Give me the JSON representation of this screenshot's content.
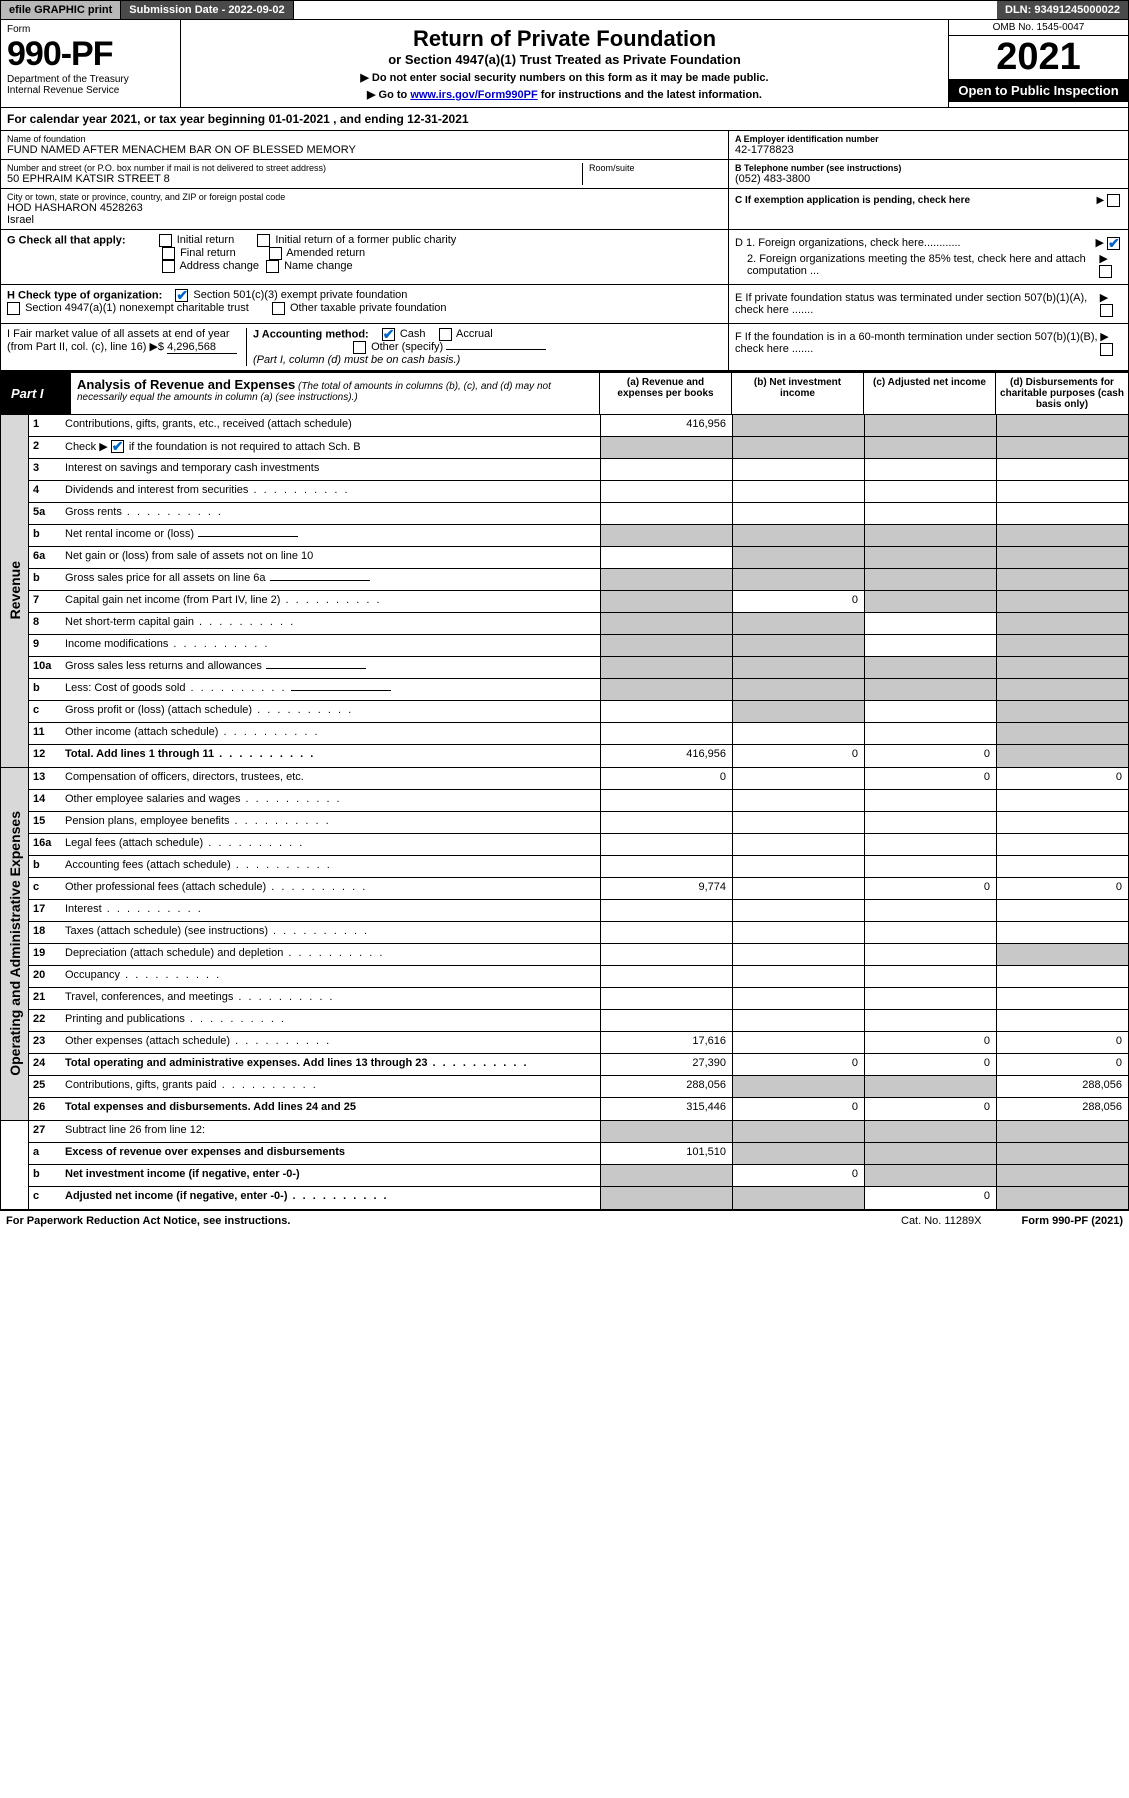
{
  "topbar": {
    "efile": "efile GRAPHIC print",
    "subdate_label": "Submission Date - 2022-09-02",
    "dln": "DLN: 93491245000022"
  },
  "header": {
    "form_word": "Form",
    "form_no": "990-PF",
    "dept": "Department of the Treasury",
    "irs": "Internal Revenue Service",
    "title": "Return of Private Foundation",
    "subtitle": "or Section 4947(a)(1) Trust Treated as Private Foundation",
    "note1": "▶ Do not enter social security numbers on this form as it may be made public.",
    "note2_pre": "▶ Go to ",
    "note2_link": "www.irs.gov/Form990PF",
    "note2_post": " for instructions and the latest information.",
    "omb": "OMB No. 1545-0047",
    "year": "2021",
    "inspect": "Open to Public Inspection"
  },
  "calyear": "For calendar year 2021, or tax year beginning 01-01-2021             , and ending 12-31-2021",
  "info": {
    "name_lbl": "Name of foundation",
    "name": "FUND NAMED AFTER MENACHEM BAR ON OF BLESSED MEMORY",
    "addr_lbl": "Number and street (or P.O. box number if mail is not delivered to street address)",
    "addr": "50 EPHRAIM KATSIR STREET 8",
    "room_lbl": "Room/suite",
    "city_lbl": "City or town, state or province, country, and ZIP or foreign postal code",
    "city": "HOD HASHARON  4528263",
    "country": "Israel",
    "a_lbl": "A Employer identification number",
    "a_val": "42-1778823",
    "b_lbl": "B Telephone number (see instructions)",
    "b_val": "(052) 483-3800",
    "c_lbl": "C If exemption application is pending, check here"
  },
  "g": {
    "label": "G Check all that apply:",
    "opts": [
      "Initial return",
      "Final return",
      "Address change",
      "Initial return of a former public charity",
      "Amended return",
      "Name change"
    ]
  },
  "d": {
    "d1": "D 1. Foreign organizations, check here............",
    "d2": "2. Foreign organizations meeting the 85% test, check here and attach computation ...",
    "e": "E  If private foundation status was terminated under section 507(b)(1)(A), check here .......",
    "f": "F  If the foundation is in a 60-month termination under section 507(b)(1)(B), check here ......."
  },
  "h": {
    "label": "H Check type of organization:",
    "opt1": "Section 501(c)(3) exempt private foundation",
    "opt2": "Section 4947(a)(1) nonexempt charitable trust",
    "opt3": "Other taxable private foundation"
  },
  "i": {
    "label": "I Fair market value of all assets at end of year (from Part II, col. (c), line 16)",
    "arrow": "▶$",
    "val": "4,296,568"
  },
  "j": {
    "label": "J Accounting method:",
    "cash": "Cash",
    "accrual": "Accrual",
    "other": "Other (specify)",
    "note": "(Part I, column (d) must be on cash basis.)"
  },
  "part1": {
    "label": "Part I",
    "title": "Analysis of Revenue and Expenses",
    "sub": "(The total of amounts in columns (b), (c), and (d) may not necessarily equal the amounts in column (a) (see instructions).)",
    "cols": {
      "a": "(a)  Revenue and expenses per books",
      "b": "(b)  Net investment income",
      "c": "(c)  Adjusted net income",
      "d": "(d)  Disbursements for charitable purposes (cash basis only)"
    }
  },
  "sections": {
    "revenue": "Revenue",
    "opex": "Operating and Administrative Expenses"
  },
  "rows": {
    "r1": {
      "n": "1",
      "d": "Contributions, gifts, grants, etc., received (attach schedule)",
      "a": "416,956",
      "shade": [
        "b",
        "c",
        "d"
      ]
    },
    "r2": {
      "n": "2",
      "d_pre": "Check ▶ ",
      "d_post": " if the foundation is not required to attach Sch. B",
      "checked": true,
      "shade": [
        "a",
        "b",
        "c",
        "d"
      ]
    },
    "r3": {
      "n": "3",
      "d": "Interest on savings and temporary cash investments"
    },
    "r4": {
      "n": "4",
      "d": "Dividends and interest from securities",
      "dots": true
    },
    "r5a": {
      "n": "5a",
      "d": "Gross rents",
      "dots": true
    },
    "r5b": {
      "n": "b",
      "d": "Net rental income or (loss)",
      "inline": true,
      "shade": [
        "a",
        "b",
        "c",
        "d"
      ]
    },
    "r6a": {
      "n": "6a",
      "d": "Net gain or (loss) from sale of assets not on line 10",
      "shade": [
        "b",
        "c",
        "d"
      ]
    },
    "r6b": {
      "n": "b",
      "d": "Gross sales price for all assets on line 6a",
      "inline": true,
      "shade": [
        "a",
        "b",
        "c",
        "d"
      ]
    },
    "r7": {
      "n": "7",
      "d": "Capital gain net income (from Part IV, line 2)",
      "dots": true,
      "b": "0",
      "shade": [
        "a",
        "c",
        "d"
      ]
    },
    "r8": {
      "n": "8",
      "d": "Net short-term capital gain",
      "dots": true,
      "shade": [
        "a",
        "b",
        "d"
      ]
    },
    "r9": {
      "n": "9",
      "d": "Income modifications",
      "dots": true,
      "shade": [
        "a",
        "b",
        "d"
      ]
    },
    "r10a": {
      "n": "10a",
      "d": "Gross sales less returns and allowances",
      "inline": true,
      "shade": [
        "a",
        "b",
        "c",
        "d"
      ]
    },
    "r10b": {
      "n": "b",
      "d": "Less: Cost of goods sold",
      "dots": true,
      "inline": true,
      "shade": [
        "a",
        "b",
        "c",
        "d"
      ]
    },
    "r10c": {
      "n": "c",
      "d": "Gross profit or (loss) (attach schedule)",
      "dots": true,
      "shade": [
        "b",
        "d"
      ]
    },
    "r11": {
      "n": "11",
      "d": "Other income (attach schedule)",
      "dots": true,
      "shade": [
        "d"
      ]
    },
    "r12": {
      "n": "12",
      "d": "Total. Add lines 1 through 11",
      "dots": true,
      "bold": true,
      "a": "416,956",
      "b": "0",
      "c": "0",
      "shade": [
        "d"
      ]
    },
    "r13": {
      "n": "13",
      "d": "Compensation of officers, directors, trustees, etc.",
      "a": "0",
      "c": "0",
      "dd": "0"
    },
    "r14": {
      "n": "14",
      "d": "Other employee salaries and wages",
      "dots": true
    },
    "r15": {
      "n": "15",
      "d": "Pension plans, employee benefits",
      "dots": true
    },
    "r16a": {
      "n": "16a",
      "d": "Legal fees (attach schedule)",
      "dots": true
    },
    "r16b": {
      "n": "b",
      "d": "Accounting fees (attach schedule)",
      "dots": true
    },
    "r16c": {
      "n": "c",
      "d": "Other professional fees (attach schedule)",
      "dots": true,
      "a": "9,774",
      "c": "0",
      "dd": "0"
    },
    "r17": {
      "n": "17",
      "d": "Interest",
      "dots": true
    },
    "r18": {
      "n": "18",
      "d": "Taxes (attach schedule) (see instructions)",
      "dots": true
    },
    "r19": {
      "n": "19",
      "d": "Depreciation (attach schedule) and depletion",
      "dots": true,
      "shade": [
        "d"
      ]
    },
    "r20": {
      "n": "20",
      "d": "Occupancy",
      "dots": true
    },
    "r21": {
      "n": "21",
      "d": "Travel, conferences, and meetings",
      "dots": true
    },
    "r22": {
      "n": "22",
      "d": "Printing and publications",
      "dots": true
    },
    "r23": {
      "n": "23",
      "d": "Other expenses (attach schedule)",
      "dots": true,
      "a": "17,616",
      "c": "0",
      "dd": "0"
    },
    "r24": {
      "n": "24",
      "d": "Total operating and administrative expenses. Add lines 13 through 23",
      "dots": true,
      "bold": true,
      "a": "27,390",
      "b": "0",
      "c": "0",
      "dd": "0"
    },
    "r25": {
      "n": "25",
      "d": "Contributions, gifts, grants paid",
      "dots": true,
      "a": "288,056",
      "dd": "288,056",
      "shade": [
        "b",
        "c"
      ]
    },
    "r26": {
      "n": "26",
      "d": "Total expenses and disbursements. Add lines 24 and 25",
      "bold": true,
      "a": "315,446",
      "b": "0",
      "c": "0",
      "dd": "288,056"
    },
    "r27": {
      "n": "27",
      "d": "Subtract line 26 from line 12:",
      "bold": false,
      "shade": [
        "a",
        "b",
        "c",
        "d"
      ]
    },
    "r27a": {
      "n": "a",
      "d": "Excess of revenue over expenses and disbursements",
      "bold": true,
      "a": "101,510",
      "shade": [
        "b",
        "c",
        "d"
      ]
    },
    "r27b": {
      "n": "b",
      "d": "Net investment income (if negative, enter -0-)",
      "bold": true,
      "b": "0",
      "shade": [
        "a",
        "c",
        "d"
      ]
    },
    "r27c": {
      "n": "c",
      "d": "Adjusted net income (if negative, enter -0-)",
      "bold": true,
      "dots": true,
      "c": "0",
      "shade": [
        "a",
        "b",
        "d"
      ]
    }
  },
  "footer": {
    "left": "For Paperwork Reduction Act Notice, see instructions.",
    "cat": "Cat. No. 11289X",
    "right": "Form 990-PF (2021)"
  },
  "colors": {
    "shade": "#c8c8c8",
    "vtab_bg": "#d8d8d8",
    "link": "#0000cc",
    "check": "#0066cc"
  }
}
